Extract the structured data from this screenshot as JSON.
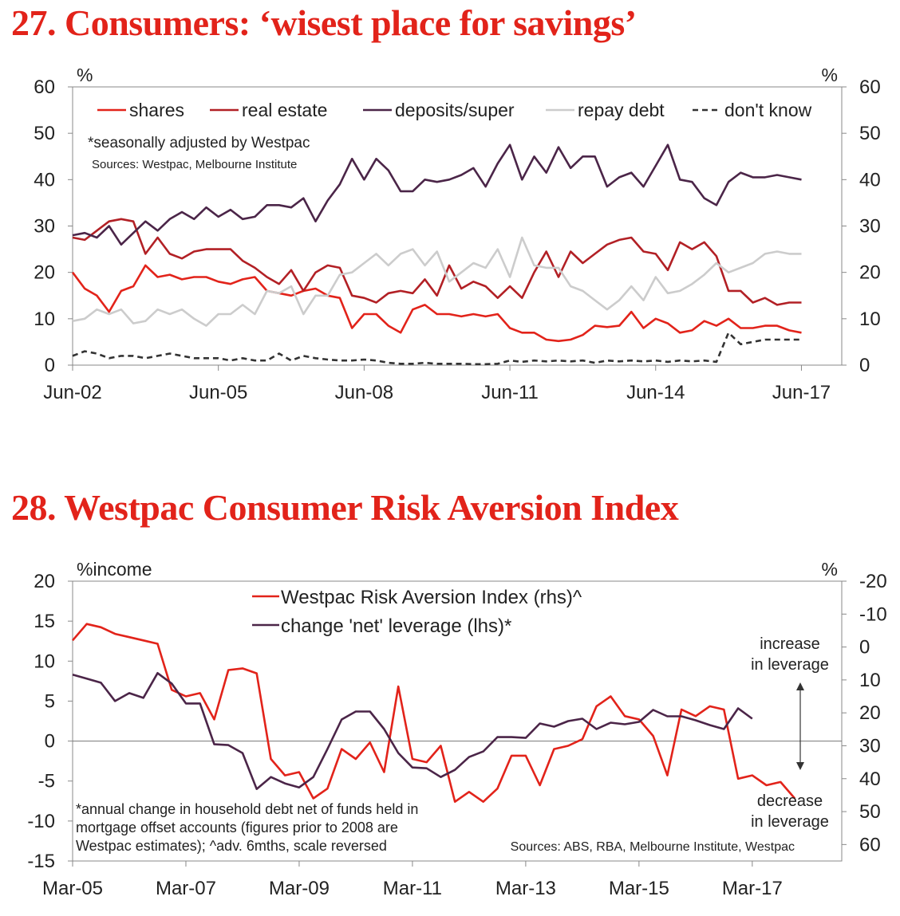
{
  "charts_meta": {
    "title1": "27. Consumers: ‘wisest place for savings’",
    "title2": "28. Westpac Consumer Risk Aversion Index"
  },
  "chart_data": [
    {
      "type": "line",
      "title": "27. Consumers: ‘wisest place for savings’",
      "left_unit": "%",
      "right_unit": "%",
      "ylim": [
        0,
        60
      ],
      "yticks": [
        0,
        10,
        20,
        30,
        40,
        50,
        60
      ],
      "xlim": [
        2002.42,
        2018.25
      ],
      "xticks": [
        {
          "label": "Jun-02",
          "value": 2002.42
        },
        {
          "label": "Jun-05",
          "value": 2005.42
        },
        {
          "label": "Jun-08",
          "value": 2008.42
        },
        {
          "label": "Jun-11",
          "value": 2011.42
        },
        {
          "label": "Jun-14",
          "value": 2014.42
        },
        {
          "label": "Jun-17",
          "value": 2017.42
        }
      ],
      "note": "*seasonally adjusted by Westpac",
      "sources": "Sources: Westpac, Melbourne Institute",
      "legend_position": "top",
      "series": [
        {
          "name": "shares",
          "color": "#e2231a",
          "dash": false,
          "x": [
            2002.42,
            2002.67,
            2002.92,
            2003.17,
            2003.42,
            2003.67,
            2003.92,
            2004.17,
            2004.42,
            2004.67,
            2004.92,
            2005.17,
            2005.42,
            2005.67,
            2005.92,
            2006.17,
            2006.42,
            2006.67,
            2006.92,
            2007.17,
            2007.42,
            2007.67,
            2007.92,
            2008.17,
            2008.42,
            2008.67,
            2008.92,
            2009.17,
            2009.42,
            2009.67,
            2009.92,
            2010.17,
            2010.42,
            2010.67,
            2010.92,
            2011.17,
            2011.42,
            2011.67,
            2011.92,
            2012.17,
            2012.42,
            2012.67,
            2012.92,
            2013.17,
            2013.42,
            2013.67,
            2013.92,
            2014.17,
            2014.42,
            2014.67,
            2014.92,
            2015.17,
            2015.42,
            2015.67,
            2015.92,
            2016.17,
            2016.42,
            2016.67,
            2016.92,
            2017.17,
            2017.42
          ],
          "y": [
            20,
            16.5,
            15,
            11.5,
            16,
            17,
            21.5,
            19,
            19.5,
            18.5,
            19,
            19,
            18,
            17.5,
            18.5,
            19,
            16,
            15.5,
            15,
            16,
            16.5,
            15,
            14.5,
            8,
            11,
            11,
            8.5,
            7,
            12,
            13,
            11,
            11,
            10.5,
            11,
            10.5,
            11,
            8,
            7,
            7,
            5.5,
            5.2,
            5.5,
            6.5,
            8.5,
            8.2,
            8.5,
            11.5,
            8,
            10,
            9,
            7,
            7.5,
            9.5,
            8.5,
            10,
            8,
            8,
            8.5,
            8.5,
            7.5,
            7
          ]
        },
        {
          "name": "real estate",
          "color": "#b22025",
          "dash": false,
          "x": [
            2002.42,
            2002.67,
            2002.92,
            2003.17,
            2003.42,
            2003.67,
            2003.92,
            2004.17,
            2004.42,
            2004.67,
            2004.92,
            2005.17,
            2005.42,
            2005.67,
            2005.92,
            2006.17,
            2006.42,
            2006.67,
            2006.92,
            2007.17,
            2007.42,
            2007.67,
            2007.92,
            2008.17,
            2008.42,
            2008.67,
            2008.92,
            2009.17,
            2009.42,
            2009.67,
            2009.92,
            2010.17,
            2010.42,
            2010.67,
            2010.92,
            2011.17,
            2011.42,
            2011.67,
            2011.92,
            2012.17,
            2012.42,
            2012.67,
            2012.92,
            2013.17,
            2013.42,
            2013.67,
            2013.92,
            2014.17,
            2014.42,
            2014.67,
            2014.92,
            2015.17,
            2015.42,
            2015.67,
            2015.92,
            2016.17,
            2016.42,
            2016.67,
            2016.92,
            2017.17,
            2017.42
          ],
          "y": [
            27.5,
            27,
            29,
            31,
            31.5,
            31,
            24,
            27.5,
            24,
            23,
            24.5,
            25,
            25,
            25,
            22.5,
            21,
            19,
            17.5,
            20.5,
            16,
            20,
            21.5,
            21,
            15,
            14.5,
            13.5,
            15.5,
            16,
            15.5,
            18.5,
            15,
            21.5,
            16.5,
            18,
            17,
            14.5,
            17,
            14.5,
            20,
            24.5,
            19,
            24.5,
            22,
            24,
            26,
            27,
            27.5,
            24.5,
            24,
            20.5,
            26.5,
            25,
            26.5,
            23.5,
            16,
            16,
            13.5,
            14.5,
            13,
            13.5,
            13.5
          ]
        },
        {
          "name": "deposits/super",
          "color": "#4b2548",
          "dash": false,
          "x": [
            2002.42,
            2002.67,
            2002.92,
            2003.17,
            2003.42,
            2003.67,
            2003.92,
            2004.17,
            2004.42,
            2004.67,
            2004.92,
            2005.17,
            2005.42,
            2005.67,
            2005.92,
            2006.17,
            2006.42,
            2006.67,
            2006.92,
            2007.17,
            2007.42,
            2007.67,
            2007.92,
            2008.17,
            2008.42,
            2008.67,
            2008.92,
            2009.17,
            2009.42,
            2009.67,
            2009.92,
            2010.17,
            2010.42,
            2010.67,
            2010.92,
            2011.17,
            2011.42,
            2011.67,
            2011.92,
            2012.17,
            2012.42,
            2012.67,
            2012.92,
            2013.17,
            2013.42,
            2013.67,
            2013.92,
            2014.17,
            2014.42,
            2014.67,
            2014.92,
            2015.17,
            2015.42,
            2015.67,
            2015.92,
            2016.17,
            2016.42,
            2016.67,
            2016.92,
            2017.17,
            2017.42
          ],
          "y": [
            28,
            28.5,
            27.5,
            30,
            26,
            28.5,
            31,
            29,
            31.5,
            33,
            31.5,
            34,
            32,
            33.5,
            31.5,
            32,
            34.5,
            34.5,
            34,
            36,
            31,
            35.5,
            39,
            44.5,
            40,
            44.5,
            42,
            37.5,
            37.5,
            40,
            39.5,
            40,
            41,
            42.5,
            38.5,
            43.5,
            47.5,
            40,
            45,
            41.5,
            47,
            42.5,
            45,
            45,
            38.5,
            40.5,
            41.5,
            38.5,
            43,
            47.5,
            40,
            39.5,
            36,
            34.5,
            39.5,
            41.5,
            40.5,
            40.5,
            41,
            40.5,
            40
          ]
        },
        {
          "name": "repay debt",
          "color": "#cccccc",
          "dash": false,
          "x": [
            2002.42,
            2002.67,
            2002.92,
            2003.17,
            2003.42,
            2003.67,
            2003.92,
            2004.17,
            2004.42,
            2004.67,
            2004.92,
            2005.17,
            2005.42,
            2005.67,
            2005.92,
            2006.17,
            2006.42,
            2006.67,
            2006.92,
            2007.17,
            2007.42,
            2007.67,
            2007.92,
            2008.17,
            2008.42,
            2008.67,
            2008.92,
            2009.17,
            2009.42,
            2009.67,
            2009.92,
            2010.17,
            2010.42,
            2010.67,
            2010.92,
            2011.17,
            2011.42,
            2011.67,
            2011.92,
            2012.17,
            2012.42,
            2012.67,
            2012.92,
            2013.17,
            2013.42,
            2013.67,
            2013.92,
            2014.17,
            2014.42,
            2014.67,
            2014.92,
            2015.17,
            2015.42,
            2015.67,
            2015.92,
            2016.17,
            2016.42,
            2016.67,
            2016.92,
            2017.17,
            2017.42
          ],
          "y": [
            9.5,
            10,
            12,
            11,
            12,
            9,
            9.5,
            12,
            11,
            12,
            10,
            8.5,
            11,
            11,
            13,
            11,
            16,
            15.5,
            17,
            11,
            15,
            15,
            19.5,
            20,
            22,
            24,
            21.5,
            24,
            25,
            21.5,
            24.5,
            18,
            20,
            22,
            21,
            25,
            19,
            27.5,
            21.5,
            21,
            21,
            17,
            16,
            14,
            12,
            14,
            17,
            14,
            19,
            15.5,
            16,
            17.5,
            19.5,
            22,
            20,
            21,
            22,
            24,
            24.5,
            24,
            24
          ]
        },
        {
          "name": "don't know",
          "color": "#333333",
          "dash": true,
          "x": [
            2002.42,
            2002.67,
            2002.92,
            2003.17,
            2003.42,
            2003.67,
            2003.92,
            2004.17,
            2004.42,
            2004.67,
            2004.92,
            2005.17,
            2005.42,
            2005.67,
            2005.92,
            2006.17,
            2006.42,
            2006.67,
            2006.92,
            2007.17,
            2007.42,
            2007.67,
            2007.92,
            2008.17,
            2008.42,
            2008.67,
            2008.92,
            2009.17,
            2009.42,
            2009.67,
            2009.92,
            2010.17,
            2010.42,
            2010.67,
            2010.92,
            2011.17,
            2011.42,
            2011.67,
            2011.92,
            2012.17,
            2012.42,
            2012.67,
            2012.92,
            2013.17,
            2013.42,
            2013.67,
            2013.92,
            2014.17,
            2014.42,
            2014.67,
            2014.92,
            2015.17,
            2015.42,
            2015.67,
            2015.92,
            2016.17,
            2016.42,
            2016.67,
            2016.92,
            2017.17,
            2017.42
          ],
          "y": [
            2,
            3,
            2.5,
            1.5,
            2,
            2,
            1.5,
            2,
            2.5,
            2,
            1.5,
            1.5,
            1.5,
            1,
            1.5,
            1,
            1,
            2.5,
            1,
            2,
            1.5,
            1.2,
            1,
            1,
            1.2,
            1,
            0.5,
            0.3,
            0.3,
            0.5,
            0.3,
            0.3,
            0.3,
            0.2,
            0.2,
            0.3,
            1,
            0.7,
            1,
            0.8,
            1,
            0.8,
            1,
            0.5,
            1,
            0.8,
            1,
            0.8,
            1,
            0.7,
            1,
            0.8,
            1,
            0.7,
            7,
            4.5,
            5,
            5.5,
            5.5,
            5.5,
            5.5
          ]
        }
      ]
    },
    {
      "type": "line",
      "title": "28. Westpac Consumer Risk Aversion Index",
      "left_unit": "%income",
      "right_unit": "%",
      "ylim_left": [
        -15,
        20
      ],
      "yticks_left": [
        -15,
        -10,
        -5,
        0,
        5,
        10,
        15,
        20
      ],
      "ylim_right_reversed": [
        65,
        -20
      ],
      "yticks_right": [
        -20,
        -10,
        0,
        10,
        20,
        30,
        40,
        50,
        60
      ],
      "xlim": [
        2005.17,
        2018.75
      ],
      "xticks": [
        {
          "label": "Mar-05",
          "value": 2005.17
        },
        {
          "label": "Mar-07",
          "value": 2007.17
        },
        {
          "label": "Mar-09",
          "value": 2009.17
        },
        {
          "label": "Mar-11",
          "value": 2011.17
        },
        {
          "label": "Mar-13",
          "value": 2013.17
        },
        {
          "label": "Mar-15",
          "value": 2015.17
        },
        {
          "label": "Mar-17",
          "value": 2017.17
        }
      ],
      "note": "*annual change in household debt net of funds held in mortgage offset accounts (figures prior to 2008 are Westpac estimates); ^adv. 6mths, scale reversed",
      "note_lines": [
        "*annual change in household debt net of funds held in",
        "mortgage offset accounts (figures prior to 2008 are",
        "Westpac estimates); ^adv. 6mths, scale reversed"
      ],
      "sources": "Sources: ABS, RBA, Melbourne Institute, Westpac",
      "annotations": {
        "increase": [
          "increase",
          "in leverage"
        ],
        "decrease": [
          "decrease",
          "in leverage"
        ]
      },
      "legend_position": "top-center",
      "series": [
        {
          "name": "Westpac Risk Aversion Index (rhs)^",
          "color": "#e2231a",
          "axis": "right",
          "x": [
            2005.17,
            2005.42,
            2005.67,
            2005.92,
            2006.17,
            2006.42,
            2006.67,
            2006.92,
            2007.17,
            2007.42,
            2007.67,
            2007.92,
            2008.17,
            2008.42,
            2008.67,
            2008.92,
            2009.17,
            2009.42,
            2009.67,
            2009.92,
            2010.17,
            2010.42,
            2010.67,
            2010.92,
            2011.17,
            2011.42,
            2011.67,
            2011.92,
            2012.17,
            2012.42,
            2012.67,
            2012.92,
            2013.17,
            2013.42,
            2013.67,
            2013.92,
            2014.17,
            2014.42,
            2014.67,
            2014.92,
            2015.17,
            2015.42,
            2015.67,
            2015.92,
            2016.17,
            2016.42,
            2016.67,
            2016.92,
            2017.17,
            2017.42,
            2017.67,
            2017.92
          ],
          "y": [
            -2,
            -7,
            -6,
            -4,
            -3,
            -2,
            -1,
            13,
            15,
            14,
            22,
            7,
            6.5,
            8,
            34,
            39,
            38,
            46,
            43,
            31,
            34,
            29,
            38,
            12,
            34,
            35,
            30,
            47,
            44,
            47,
            43,
            33,
            33,
            42,
            31,
            30,
            28,
            18,
            15,
            21,
            22,
            27,
            39,
            19,
            21,
            18,
            19,
            40,
            39,
            42,
            41,
            46
          ]
        },
        {
          "name": "change 'net' leverage (lhs)*",
          "color": "#4b2548",
          "axis": "left",
          "x": [
            2005.17,
            2005.42,
            2005.67,
            2005.92,
            2006.17,
            2006.42,
            2006.67,
            2006.92,
            2007.17,
            2007.42,
            2007.67,
            2007.92,
            2008.17,
            2008.42,
            2008.67,
            2008.92,
            2009.17,
            2009.42,
            2009.67,
            2009.92,
            2010.17,
            2010.42,
            2010.67,
            2010.92,
            2011.17,
            2011.42,
            2011.67,
            2011.92,
            2012.17,
            2012.42,
            2012.67,
            2012.92,
            2013.17,
            2013.42,
            2013.67,
            2013.92,
            2014.17,
            2014.42,
            2014.67,
            2014.92,
            2015.17,
            2015.42,
            2015.67,
            2015.92,
            2016.17,
            2016.42,
            2016.67,
            2016.92,
            2017.17
          ],
          "y": [
            8.3,
            7.8,
            7.3,
            5,
            6,
            5.4,
            8.5,
            7.2,
            4.7,
            4.7,
            -0.4,
            -0.5,
            -1.5,
            -6,
            -4.5,
            -5.3,
            -5.8,
            -4.5,
            -1,
            2.7,
            3.7,
            3.7,
            1.5,
            -1.5,
            -3.3,
            -3.4,
            -4.5,
            -3.6,
            -2,
            -1.3,
            0.5,
            0.5,
            0.4,
            2.2,
            1.8,
            2.5,
            2.8,
            1.5,
            2.3,
            2.1,
            2.4,
            3.9,
            3.1,
            3.1,
            2.6,
            2,
            1.5,
            4.1,
            2.8
          ]
        }
      ]
    }
  ]
}
